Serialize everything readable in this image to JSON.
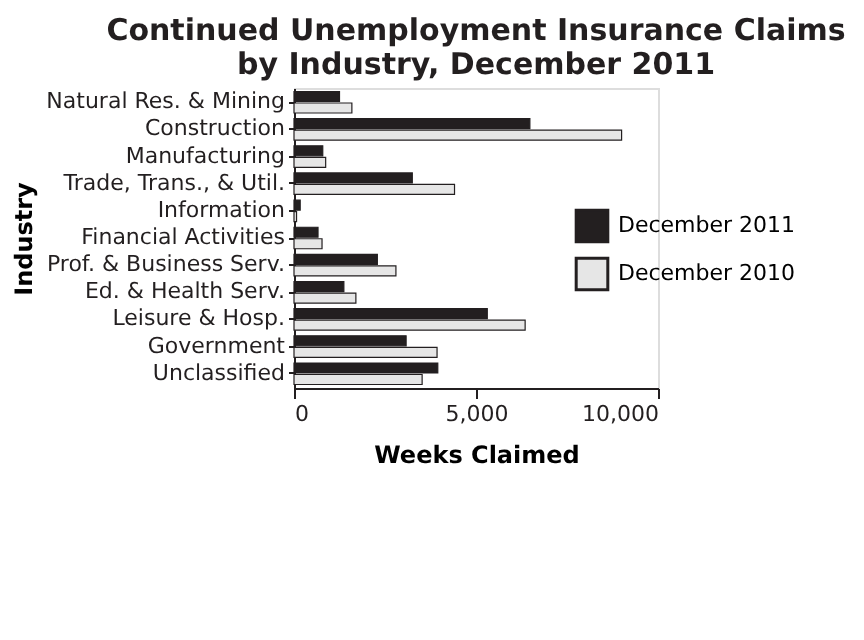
{
  "chart_data": {
    "type": "bar",
    "orientation": "horizontal",
    "title": "Continued Unemployment Insurance Claims by Industry, December 2011",
    "categories": [
      "Natural Res. & Mining",
      "Construction",
      "Manufacturing",
      "Trade, Trans., & Util.",
      "Information",
      "Financial Activities",
      "Prof. & Business Serv.",
      "Ed. & Health Serv.",
      "Leisure & Hosp.",
      "Government",
      "Unclassified"
    ],
    "series": [
      {
        "name": "December 2011",
        "color": "#231f20",
        "values": [
          1250,
          6480,
          790,
          3250,
          170,
          660,
          2290,
          1370,
          5310,
          3080,
          3950
        ]
      },
      {
        "name": "December 2010",
        "color": "#e6e6e6",
        "values": [
          1590,
          9000,
          870,
          4410,
          70,
          770,
          2800,
          1700,
          6350,
          3930,
          3520
        ]
      }
    ],
    "xlabel": "Weeks Claimed",
    "ylabel": "Industry",
    "xlim": [
      0,
      10000
    ],
    "xticks": [
      0,
      {
        "value": 5000,
        "label": "5,000"
      },
      {
        "value": 10000,
        "label": "10,000"
      }
    ],
    "grid": false,
    "legend": "right"
  }
}
